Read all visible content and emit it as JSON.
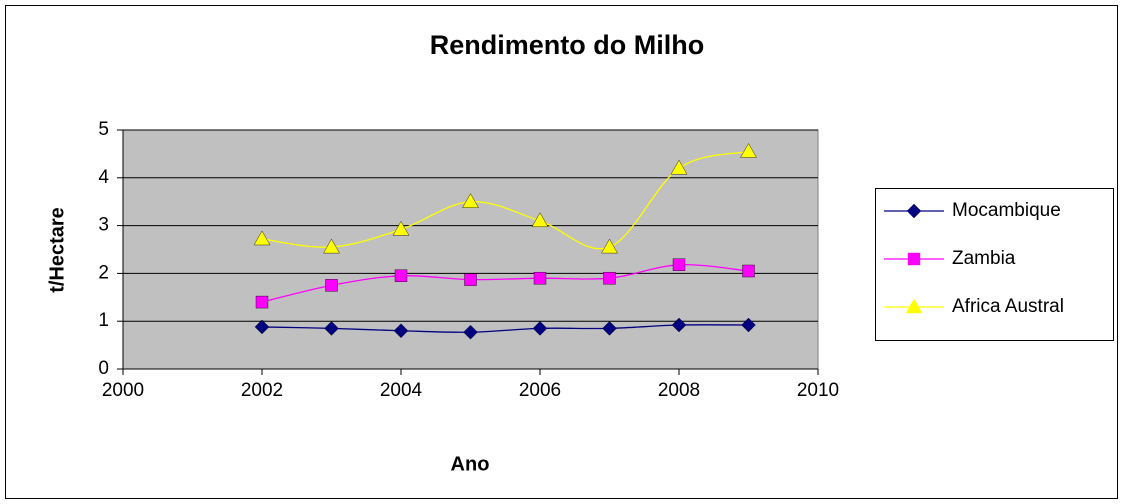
{
  "chart_data": {
    "type": "line",
    "title": "Rendimento do Milho",
    "x_label": "Ano",
    "y_label": "t/Hectare",
    "x": [
      2002,
      2003,
      2004,
      2005,
      2006,
      2007,
      2008,
      2009
    ],
    "series": [
      {
        "name": "Mocambique",
        "color": "#000080",
        "marker": "diamond",
        "values": [
          0.88,
          0.85,
          0.8,
          0.77,
          0.85,
          0.85,
          0.92,
          0.92
        ]
      },
      {
        "name": "Zambia",
        "color": "#ff00ff",
        "marker": "square",
        "values": [
          1.4,
          1.75,
          1.95,
          1.87,
          1.9,
          1.9,
          2.18,
          2.05
        ]
      },
      {
        "name": "Africa Austral",
        "color": "#ffff00",
        "marker": "triangle",
        "values": [
          2.72,
          2.55,
          2.92,
          3.5,
          3.1,
          2.55,
          4.2,
          4.55
        ]
      }
    ],
    "xlim": [
      2000,
      2010
    ],
    "xticks": [
      2000,
      2002,
      2004,
      2006,
      2008,
      2010
    ],
    "ylim": [
      0,
      5
    ],
    "yticks": [
      0,
      1,
      2,
      3,
      4,
      5
    ],
    "grid": true,
    "smooth": true,
    "legend": "right",
    "plot_background": "#c0c0c0"
  }
}
